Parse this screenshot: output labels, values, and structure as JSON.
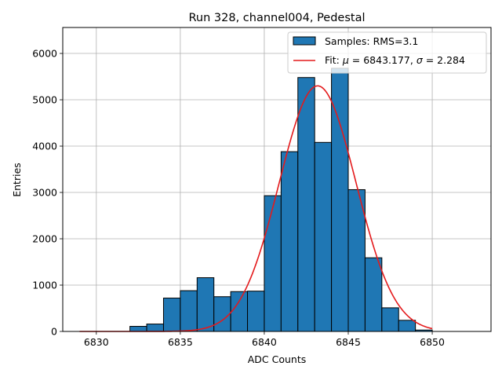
{
  "chart_data": {
    "type": "bar",
    "title": "Run 328, channel004, Pedestal",
    "xlabel": "ADC Counts",
    "ylabel": "Entries",
    "xlim": [
      6828.0,
      6853.5
    ],
    "ylim": [
      0,
      6560
    ],
    "xticks": [
      6830,
      6835,
      6840,
      6845,
      6850
    ],
    "yticks": [
      0,
      1000,
      2000,
      3000,
      4000,
      5000,
      6000
    ],
    "grid": true,
    "legend_position": "top-right",
    "bin_width": 1,
    "bins": [
      {
        "left": 6832.0,
        "value": 110
      },
      {
        "left": 6833.0,
        "value": 160
      },
      {
        "left": 6834.0,
        "value": 720
      },
      {
        "left": 6835.0,
        "value": 880
      },
      {
        "left": 6836.0,
        "value": 1160
      },
      {
        "left": 6837.0,
        "value": 750
      },
      {
        "left": 6838.0,
        "value": 860
      },
      {
        "left": 6839.0,
        "value": 870
      },
      {
        "left": 6840.0,
        "value": 2930
      },
      {
        "left": 6841.0,
        "value": 3880
      },
      {
        "left": 6842.0,
        "value": 5480
      },
      {
        "left": 6843.0,
        "value": 4080
      },
      {
        "left": 6844.0,
        "value": 5680
      },
      {
        "left": 6845.0,
        "value": 3060
      },
      {
        "left": 6846.0,
        "value": 1590
      },
      {
        "left": 6847.0,
        "value": 510
      },
      {
        "left": 6848.0,
        "value": 240
      },
      {
        "left": 6849.0,
        "value": 30
      }
    ],
    "fit": {
      "mu": 6843.177,
      "sigma": 2.284,
      "amplitude": 5300,
      "x_range": [
        6829.0,
        6850.0
      ]
    },
    "legend": [
      {
        "label": "Samples: RMS=3.1",
        "kind": "patch"
      },
      {
        "label_prefix": "Fit: ",
        "mu_symbol": "μ",
        "mu_text": " = 6843.177, ",
        "sigma_symbol": "σ",
        "sigma_text": " = 2.284",
        "kind": "line"
      }
    ],
    "colors": {
      "bar_fill": "#1f77b4",
      "bar_edge": "#000000",
      "fit_line": "#e41a1c",
      "grid": "#b0b0b0"
    }
  }
}
